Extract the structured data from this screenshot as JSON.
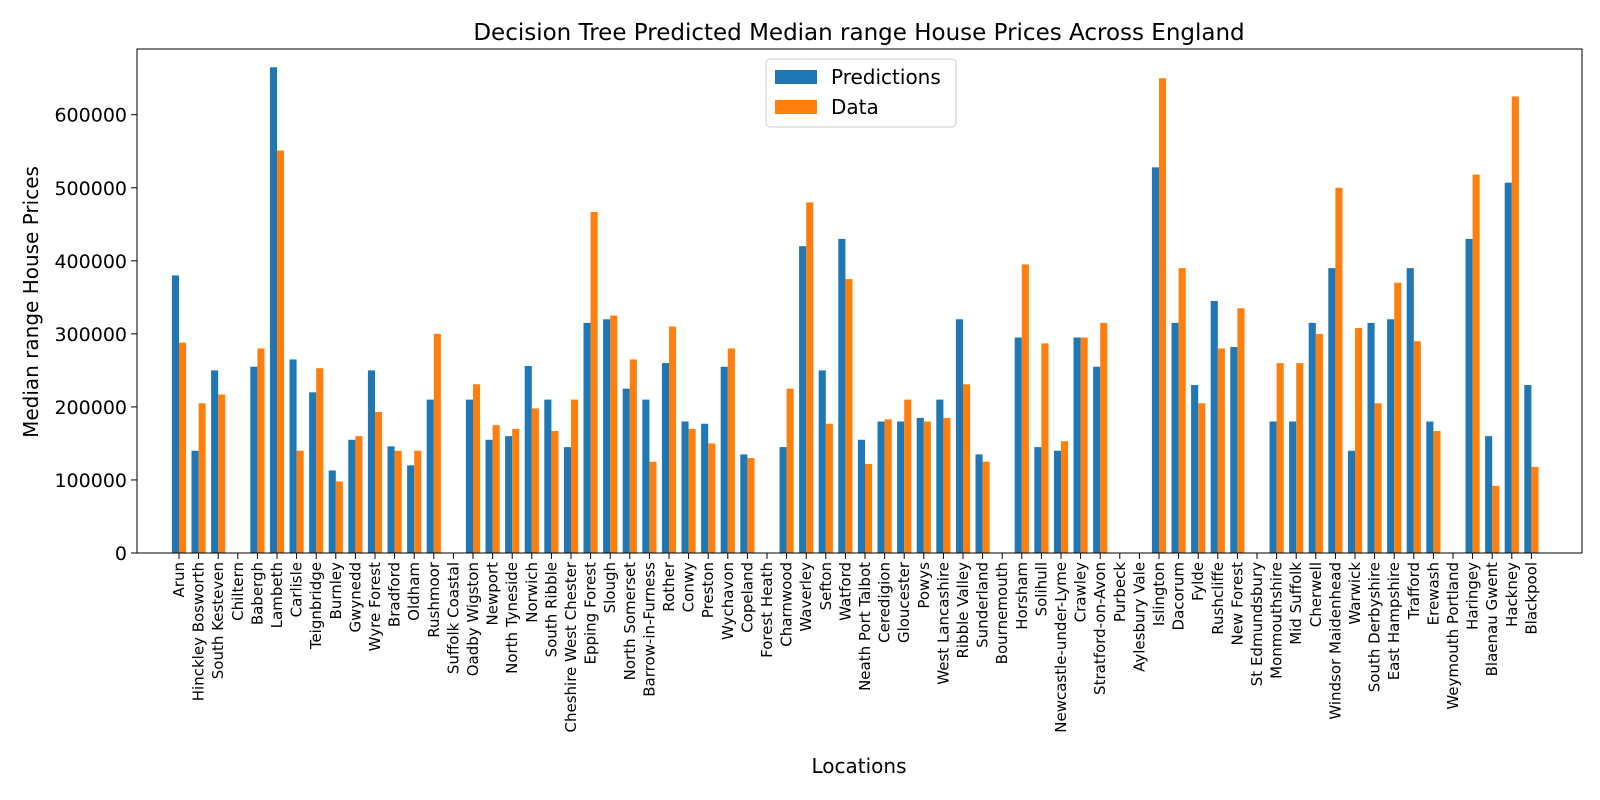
{
  "chart_data": {
    "type": "bar",
    "title": "Decision Tree Predicted Median range House Prices Across England",
    "xlabel": "Locations",
    "ylabel": "Median range House Prices",
    "ylim": [
      0,
      690000
    ],
    "yticks": [
      0,
      100000,
      200000,
      300000,
      400000,
      500000,
      600000
    ],
    "legend_position": "top-center",
    "grid": false,
    "categories": [
      "Arun",
      "Hinckley Bosworth",
      "South Kesteven",
      "Chiltern",
      "Babergh",
      "Lambeth",
      "Carlisle",
      "Teignbridge",
      "Burnley",
      "Gwynedd",
      "Wyre Forest",
      "Bradford",
      "Oldham",
      "Rushmoor",
      "Suffolk Coastal",
      "Oadby Wigston",
      "Newport",
      "North Tyneside",
      "Norwich",
      "South Ribble",
      "Cheshire West Chester",
      "Epping Forest",
      "Slough",
      "North Somerset",
      "Barrow-in-Furness",
      "Rother",
      "Conwy",
      "Preston",
      "Wychavon",
      "Copeland",
      "Forest Heath",
      "Charnwood",
      "Waverley",
      "Sefton",
      "Watford",
      "Neath Port Talbot",
      "Ceredigion",
      "Gloucester",
      "Powys",
      "West Lancashire",
      "Ribble Valley",
      "Sunderland",
      "Bournemouth",
      "Horsham",
      "Solihull",
      "Newcastle-under-Lyme",
      "Crawley",
      "Stratford-on-Avon",
      "Purbeck",
      "Aylesbury Vale",
      "Islington",
      "Dacorum",
      "Fylde",
      "Rushcliffe",
      "New Forest",
      "St Edmundsbury",
      "Monmouthshire",
      "Mid Suffolk",
      "Cherwell",
      "Windsor Maidenhead",
      "Warwick",
      "South Derbyshire",
      "East Hampshire",
      "Trafford",
      "Erewash",
      "Weymouth Portland",
      "Haringey",
      "Blaenau Gwent",
      "Hackney",
      "Blackpool"
    ],
    "series": [
      {
        "name": "Predictions",
        "color": "#1f77b4",
        "values": [
          380000,
          140000,
          250000,
          0,
          255000,
          665000,
          265000,
          220000,
          113000,
          155000,
          250000,
          146000,
          120000,
          210000,
          0,
          210000,
          155000,
          160000,
          256000,
          210000,
          145000,
          315000,
          320000,
          225000,
          210000,
          260000,
          180000,
          177000,
          255000,
          135000,
          0,
          145000,
          420000,
          250000,
          430000,
          155000,
          180000,
          180000,
          185000,
          210000,
          320000,
          135000,
          0,
          295000,
          145000,
          140000,
          295000,
          255000,
          0,
          0,
          528000,
          315000,
          230000,
          345000,
          282000,
          0,
          180000,
          180000,
          315000,
          390000,
          140000,
          315000,
          320000,
          390000,
          180000,
          0,
          430000,
          160000,
          507000,
          230000
        ]
      },
      {
        "name": "Data",
        "color": "#ff7f0e",
        "values": [
          288000,
          205000,
          217000,
          0,
          280000,
          551000,
          140000,
          253000,
          98000,
          160000,
          193000,
          140000,
          140000,
          300000,
          0,
          231000,
          175000,
          170000,
          198000,
          167000,
          210000,
          467000,
          325000,
          265000,
          125000,
          310000,
          170000,
          150000,
          280000,
          130000,
          0,
          225000,
          480000,
          177000,
          375000,
          122000,
          183000,
          210000,
          180000,
          185000,
          231000,
          125000,
          0,
          395000,
          287000,
          153000,
          295000,
          315000,
          0,
          0,
          650000,
          390000,
          205000,
          280000,
          335000,
          0,
          260000,
          260000,
          300000,
          500000,
          308000,
          205000,
          370000,
          290000,
          167000,
          0,
          518000,
          92000,
          625000,
          118000
        ]
      }
    ]
  }
}
